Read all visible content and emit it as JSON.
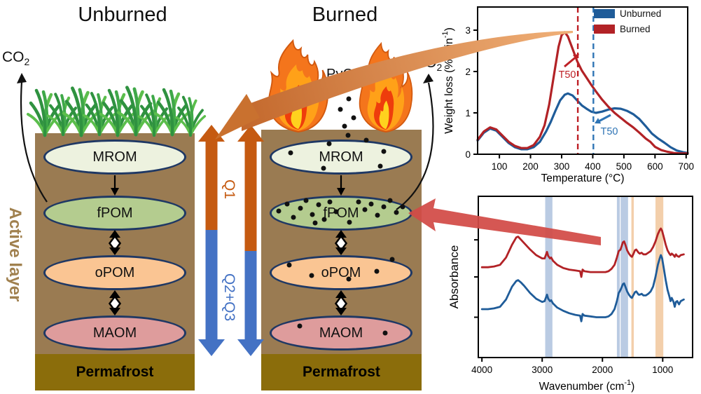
{
  "diagram": {
    "unburned_title": "Unburned",
    "burned_title": "Burned",
    "co2_main": "CO",
    "co2_sub": "2",
    "pyc_label": "PyC",
    "active_layer_label": "Active layer",
    "permafrost_label": "Permafrost",
    "flux_labels": {
      "q1": "Q1",
      "q23": "Q2+Q3"
    },
    "pools": [
      {
        "label": "MROM",
        "fill": "#EDF2DF"
      },
      {
        "label": "fPOM",
        "fill": "#B4CC8F"
      },
      {
        "label": "oPOM",
        "fill": "#FAC593"
      },
      {
        "label": "MAOM",
        "fill": "#DE9C9C"
      }
    ],
    "colors": {
      "soil": "#9A7B52",
      "permafrost": "#8B6D0B",
      "oval_border": "#1F3864",
      "q1_orange": "#C55A11",
      "q23_blue": "#4472C4",
      "transfer_arrow_red": "#D24A46",
      "active_layer_text": "#A0804E"
    }
  },
  "chart_data": [
    {
      "id": "tga",
      "type": "line",
      "xlabel": "Temperature (°C)",
      "ylabel_main": "Weight loss (% min",
      "ylabel_sup": "-1",
      "ylabel_close": ")",
      "xlim": [
        30,
        705
      ],
      "ylim": [
        0,
        3.56
      ],
      "xticks": [
        100,
        200,
        300,
        400,
        500,
        600,
        700
      ],
      "yticks": [
        0,
        1,
        2,
        3
      ],
      "legend_position": "top-right",
      "vlines": [
        {
          "x": 352,
          "color": "#BE2026",
          "style": "dashed"
        },
        {
          "x": 402,
          "color": "#2E74B5",
          "style": "dashed"
        }
      ],
      "annotations": [
        {
          "text": "T50",
          "color": "#BE2026"
        },
        {
          "text": "T50",
          "color": "#2E74B5"
        }
      ],
      "series": [
        {
          "name": "Unburned",
          "color": "#1F5C99",
          "x": [
            30,
            50,
            70,
            90,
            110,
            130,
            150,
            170,
            190,
            210,
            230,
            250,
            265,
            280,
            295,
            310,
            320,
            335,
            350,
            365,
            380,
            395,
            410,
            430,
            450,
            470,
            490,
            510,
            530,
            550,
            570,
            590,
            610,
            630,
            650,
            670,
            690,
            705
          ],
          "y": [
            0.33,
            0.52,
            0.62,
            0.57,
            0.42,
            0.27,
            0.17,
            0.12,
            0.12,
            0.17,
            0.3,
            0.55,
            0.78,
            1.05,
            1.3,
            1.44,
            1.47,
            1.42,
            1.3,
            1.18,
            1.1,
            1.03,
            1.0,
            1.03,
            1.08,
            1.11,
            1.1,
            1.05,
            0.97,
            0.85,
            0.68,
            0.5,
            0.38,
            0.28,
            0.17,
            0.09,
            0.05,
            0.03
          ]
        },
        {
          "name": "Burned",
          "color": "#B22226",
          "x": [
            30,
            50,
            70,
            90,
            110,
            130,
            150,
            170,
            190,
            210,
            230,
            245,
            260,
            275,
            290,
            300,
            310,
            320,
            335,
            350,
            365,
            380,
            395,
            410,
            430,
            450,
            470,
            490,
            510,
            530,
            550,
            570,
            585,
            600,
            620,
            640,
            660,
            680,
            705
          ],
          "y": [
            0.35,
            0.55,
            0.65,
            0.6,
            0.45,
            0.3,
            0.2,
            0.15,
            0.15,
            0.22,
            0.42,
            0.7,
            1.2,
            1.9,
            2.6,
            2.88,
            2.95,
            2.85,
            2.55,
            2.25,
            2.02,
            1.85,
            1.68,
            1.52,
            1.32,
            1.15,
            1.0,
            0.88,
            0.76,
            0.65,
            0.52,
            0.38,
            0.3,
            0.18,
            0.1,
            0.06,
            0.03,
            0.02,
            0.02
          ]
        }
      ]
    },
    {
      "id": "ftir",
      "type": "line",
      "xlabel_main": "Wavenumber (cm",
      "xlabel_sup": "-1",
      "xlabel_close": ")",
      "ylabel": "Absorbance",
      "xlim": [
        4060,
        504
      ],
      "ylim": [
        0,
        1
      ],
      "xticks": [
        4000,
        3000,
        2000,
        1000
      ],
      "yticks_unlabeled": [
        0.25,
        0.5,
        0.73
      ],
      "bands": [
        {
          "from": 2950,
          "to": 2830,
          "color": "#A9BEDC"
        },
        {
          "from": 1760,
          "to": 1712,
          "color": "#A9BEDC"
        },
        {
          "from": 1698,
          "to": 1575,
          "color": "#A9BEDC"
        },
        {
          "from": 1520,
          "to": 1480,
          "color": "#F0C396"
        },
        {
          "from": 1120,
          "to": 990,
          "color": "#F0C396"
        }
      ],
      "series": [
        {
          "name": "Burned",
          "color": "#B22226",
          "x": [
            4000,
            3900,
            3800,
            3700,
            3600,
            3500,
            3430,
            3400,
            3350,
            3300,
            3200,
            3100,
            3000,
            2960,
            2920,
            2900,
            2870,
            2850,
            2820,
            2750,
            2650,
            2550,
            2450,
            2370,
            2350,
            2330,
            2300,
            2200,
            2100,
            2000,
            1950,
            1900,
            1850,
            1800,
            1760,
            1730,
            1700,
            1660,
            1640,
            1620,
            1590,
            1560,
            1530,
            1510,
            1490,
            1460,
            1440,
            1420,
            1400,
            1380,
            1350,
            1320,
            1280,
            1240,
            1200,
            1160,
            1120,
            1080,
            1050,
            1030,
            1010,
            980,
            950,
            920,
            890,
            870,
            850,
            820,
            800,
            780,
            760,
            730,
            700,
            650
          ],
          "y": [
            0.56,
            0.56,
            0.565,
            0.575,
            0.62,
            0.7,
            0.745,
            0.75,
            0.73,
            0.71,
            0.67,
            0.635,
            0.615,
            0.615,
            0.655,
            0.63,
            0.615,
            0.62,
            0.6,
            0.575,
            0.555,
            0.545,
            0.54,
            0.535,
            0.5,
            0.545,
            0.535,
            0.53,
            0.53,
            0.53,
            0.53,
            0.535,
            0.55,
            0.575,
            0.62,
            0.66,
            0.67,
            0.715,
            0.72,
            0.7,
            0.665,
            0.645,
            0.63,
            0.625,
            0.64,
            0.665,
            0.67,
            0.66,
            0.65,
            0.645,
            0.65,
            0.64,
            0.64,
            0.65,
            0.66,
            0.685,
            0.72,
            0.765,
            0.79,
            0.8,
            0.785,
            0.745,
            0.7,
            0.665,
            0.645,
            0.635,
            0.645,
            0.635,
            0.625,
            0.64,
            0.63,
            0.625,
            0.635,
            0.64
          ]
        },
        {
          "name": "Unburned",
          "color": "#1F5C99",
          "x": [
            4000,
            3900,
            3800,
            3700,
            3600,
            3500,
            3430,
            3400,
            3350,
            3300,
            3200,
            3100,
            3000,
            2960,
            2920,
            2900,
            2870,
            2850,
            2820,
            2750,
            2650,
            2550,
            2450,
            2370,
            2350,
            2330,
            2300,
            2200,
            2100,
            2000,
            1950,
            1900,
            1850,
            1800,
            1760,
            1730,
            1700,
            1660,
            1640,
            1620,
            1590,
            1560,
            1530,
            1510,
            1490,
            1460,
            1440,
            1420,
            1400,
            1380,
            1350,
            1320,
            1280,
            1240,
            1200,
            1160,
            1120,
            1080,
            1050,
            1030,
            1010,
            980,
            950,
            920,
            890,
            870,
            850,
            820,
            800,
            780,
            760,
            730,
            700,
            650
          ],
          "y": [
            0.3,
            0.3,
            0.305,
            0.315,
            0.36,
            0.44,
            0.475,
            0.48,
            0.465,
            0.445,
            0.4,
            0.365,
            0.345,
            0.35,
            0.39,
            0.365,
            0.35,
            0.355,
            0.335,
            0.31,
            0.29,
            0.275,
            0.265,
            0.26,
            0.225,
            0.27,
            0.26,
            0.255,
            0.25,
            0.25,
            0.25,
            0.255,
            0.27,
            0.3,
            0.35,
            0.4,
            0.42,
            0.455,
            0.46,
            0.44,
            0.41,
            0.39,
            0.375,
            0.37,
            0.385,
            0.405,
            0.41,
            0.4,
            0.39,
            0.39,
            0.395,
            0.385,
            0.385,
            0.395,
            0.41,
            0.44,
            0.5,
            0.575,
            0.615,
            0.635,
            0.615,
            0.55,
            0.48,
            0.42,
            0.38,
            0.35,
            0.37,
            0.345,
            0.315,
            0.345,
            0.35,
            0.33,
            0.35,
            0.36
          ]
        }
      ]
    }
  ]
}
